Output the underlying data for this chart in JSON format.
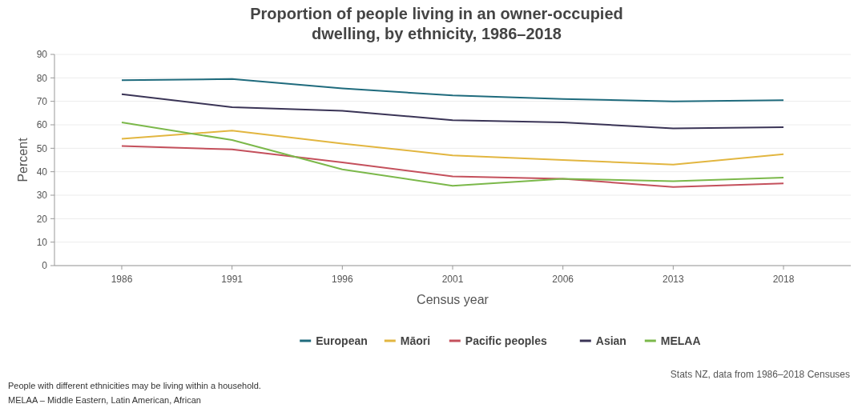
{
  "chart_data": {
    "type": "line",
    "title": "Proportion of people living in an owner-occupied\ndwelling, by ethnicity, 1986–2018",
    "xlabel": "Census year",
    "ylabel": "Percent",
    "categories": [
      "1986",
      "1991",
      "1996",
      "2001",
      "2006",
      "2013",
      "2018"
    ],
    "series": [
      {
        "name": "European",
        "color": "#1f6b7d",
        "values": [
          79,
          79.5,
          75.5,
          72.5,
          71,
          70,
          70.5
        ]
      },
      {
        "name": "Māori",
        "color": "#e2b640",
        "values": [
          54,
          57.5,
          52,
          47,
          45,
          43,
          47.5
        ]
      },
      {
        "name": "Pacific peoples",
        "color": "#c4505c",
        "values": [
          51,
          49.5,
          44,
          38,
          37,
          33.5,
          35
        ]
      },
      {
        "name": "Asian",
        "color": "#3a3456",
        "values": [
          73,
          67.5,
          66,
          62,
          61,
          58.5,
          59
        ]
      },
      {
        "name": "MELAA",
        "color": "#7bb84a",
        "values": [
          61,
          53.5,
          41,
          34,
          37,
          36,
          37.5
        ]
      }
    ],
    "ylim": [
      0,
      90
    ],
    "yticks": [
      0,
      10,
      20,
      30,
      40,
      50,
      60,
      70,
      80,
      90
    ],
    "grid": "y",
    "legend": "bottom",
    "marker": "none",
    "line_style": "solid",
    "annotations": [
      "Stats NZ, data from 1986–2018 Censuses",
      "People with different ethnicities may be living within a household.",
      "MELAA – Middle Eastern, Latin American, African"
    ]
  }
}
